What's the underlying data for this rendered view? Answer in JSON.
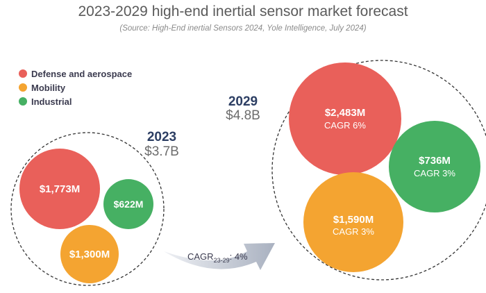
{
  "chart_data": {
    "type": "bubble",
    "title": "2023-2029 high-end inertial sensor market forecast",
    "subtitle": "(Source: High-End inertial Sensors 2024, Yole Intelligence, July 2024)",
    "legend": [
      {
        "name": "Defense and aerospace",
        "color": "#e9605a"
      },
      {
        "name": "Mobility",
        "color": "#f4a431"
      },
      {
        "name": "Industrial",
        "color": "#46b063"
      }
    ],
    "groups": [
      {
        "year": "2023",
        "total": "$3.7B",
        "segments": [
          {
            "series": "Defense and aerospace",
            "value": 1773,
            "label": "$1,773M"
          },
          {
            "series": "Industrial",
            "value": 622,
            "label": "$622M"
          },
          {
            "series": "Mobility",
            "value": 1300,
            "label": "$1,300M"
          }
        ]
      },
      {
        "year": "2029",
        "total": "$4.8B",
        "segments": [
          {
            "series": "Defense and aerospace",
            "value": 2483,
            "label": "$2,483M",
            "cagr": "CAGR 6%"
          },
          {
            "series": "Industrial",
            "value": 736,
            "label": "$736M",
            "cagr": "CAGR 3%"
          },
          {
            "series": "Mobility",
            "value": 1590,
            "label": "$1,590M",
            "cagr": "CAGR 3%"
          }
        ]
      }
    ],
    "overall_cagr": {
      "prefix": "CAGR",
      "subscript": "23-29",
      "suffix": ": 4%"
    }
  }
}
